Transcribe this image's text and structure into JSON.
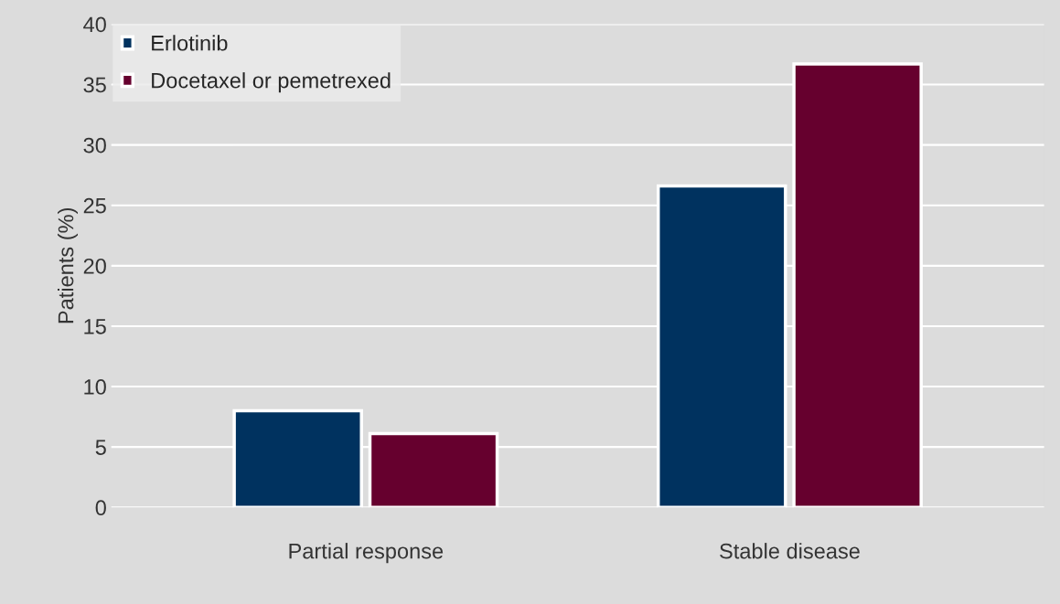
{
  "chart_data": {
    "type": "bar",
    "ylabel": "Patients (%)",
    "categories": [
      "Partial response",
      "Stable disease"
    ],
    "series": [
      {
        "name": "Erlotinib",
        "color": "#00325f",
        "values": [
          8,
          26.6
        ]
      },
      {
        "name": "Docetaxel or pemetrexed",
        "color": "#66002e",
        "values": [
          6.1,
          36.7
        ]
      }
    ],
    "ylim": [
      0,
      40
    ],
    "yticks": [
      0,
      5,
      10,
      15,
      20,
      25,
      30,
      35,
      40
    ],
    "grid": "y",
    "legend": "top left"
  }
}
